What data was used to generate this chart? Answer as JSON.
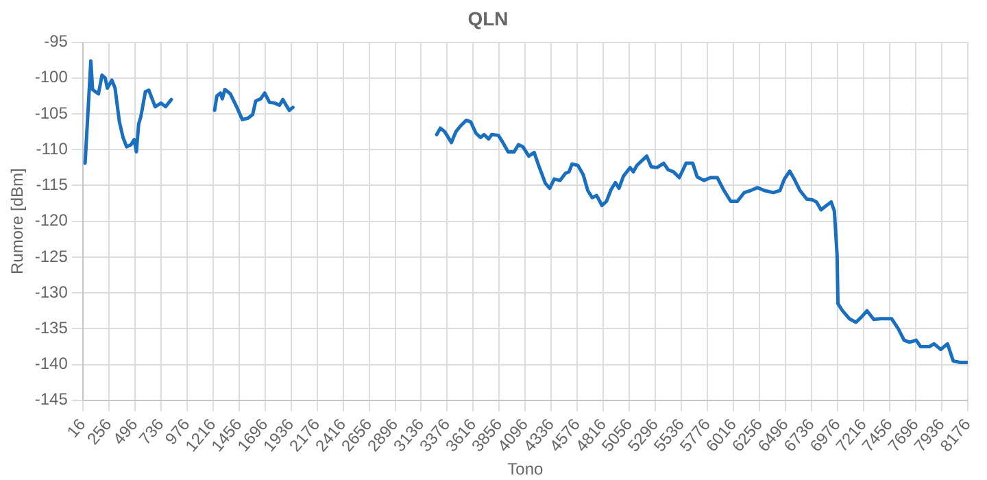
{
  "chart_data": {
    "type": "line",
    "title": "QLN",
    "xlabel": "Tono",
    "ylabel": "Rumore [dBm]",
    "xlim": [
      16,
      8176
    ],
    "xticks": [
      16,
      256,
      496,
      736,
      976,
      1216,
      1456,
      1696,
      1936,
      2176,
      2416,
      2656,
      2896,
      3136,
      3376,
      3616,
      3856,
      4096,
      4336,
      4576,
      4816,
      5056,
      5296,
      5536,
      5776,
      6016,
      6256,
      6496,
      6736,
      6976,
      7216,
      7456,
      7696,
      7936,
      8176
    ],
    "ylim": [
      -145,
      -95
    ],
    "yticks": [
      -95,
      -100,
      -105,
      -110,
      -115,
      -120,
      -125,
      -130,
      -135,
      -140,
      -145
    ],
    "grid": true,
    "legend": false,
    "marker": "none",
    "line_style": "solid",
    "series": [
      {
        "color": "#1a6fbf",
        "x": [
          37,
          90,
          106,
          131,
          160,
          193,
          222,
          242,
          284,
          313,
          353,
          387,
          420,
          461,
          490,
          510,
          531,
          551,
          593,
          625,
          655,
          683,
          737,
          779,
          832,
          1030,
          1231,
          1252,
          1285,
          1302,
          1326,
          1376,
          1437,
          1487,
          1540,
          1582,
          1610,
          1656,
          1693,
          1738,
          1787,
          1829,
          1861,
          1891,
          1920,
          1953,
          2600,
          3279,
          3313,
          3353,
          3415,
          3456,
          3498,
          3551,
          3592,
          3641,
          3683,
          3716,
          3758,
          3786,
          3848,
          3889,
          3938,
          3993,
          4033,
          4074,
          4128,
          4178,
          4219,
          4281,
          4321,
          4363,
          4416,
          4466,
          4499,
          4527,
          4581,
          4630,
          4672,
          4713,
          4754,
          4803,
          4845,
          4886,
          4927,
          4960,
          5001,
          5063,
          5092,
          5125,
          5174,
          5216,
          5257,
          5310,
          5372,
          5413,
          5463,
          5516,
          5578,
          5640,
          5681,
          5743,
          5804,
          5866,
          5928,
          5990,
          6052,
          6114,
          6175,
          6237,
          6299,
          6382,
          6444,
          6485,
          6534,
          6576,
          6629,
          6691,
          6740,
          6781,
          6823,
          6864,
          6917,
          6946,
          6971,
          6979,
          7021,
          7083,
          7145,
          7194,
          7247,
          7309,
          7371,
          7473,
          7535,
          7589,
          7639,
          7700,
          7741,
          7824,
          7865,
          7927,
          7989,
          8042,
          8104,
          8174
        ],
        "values": [
          -111.9,
          -97.6,
          -101.6,
          -101.9,
          -102.2,
          -99.6,
          -100,
          -101.4,
          -100.3,
          -101.4,
          -106.1,
          -108.3,
          -109.6,
          -109.3,
          -108.6,
          -110.3,
          -106.4,
          -105.4,
          -101.9,
          -101.7,
          -102.9,
          -104,
          -103.5,
          -104,
          -103,
          null,
          -104.5,
          -102.5,
          -102.1,
          -102.9,
          -101.6,
          -102.2,
          -104.1,
          -105.8,
          -105.6,
          -105.1,
          -103.2,
          -102.9,
          -102.1,
          -103.4,
          -103.5,
          -103.8,
          -103,
          -103.8,
          -104.5,
          -104.1,
          null,
          -107.9,
          -107,
          -107.5,
          -109,
          -107.5,
          -106.7,
          -105.9,
          -106.1,
          -107.7,
          -108.3,
          -107.9,
          -108.5,
          -107.9,
          -108,
          -109,
          -110.3,
          -110.3,
          -109.3,
          -109.6,
          -110.9,
          -110.4,
          -112.2,
          -114.7,
          -115.4,
          -114.1,
          -114.3,
          -113.3,
          -113.1,
          -112,
          -112.2,
          -113.5,
          -115.7,
          -116.7,
          -116.4,
          -117.8,
          -117.2,
          -115.6,
          -114.6,
          -115.4,
          -113.7,
          -112.5,
          -113.1,
          -112.2,
          -111.5,
          -110.9,
          -112.4,
          -112.5,
          -111.9,
          -112.8,
          -113.1,
          -113.9,
          -111.9,
          -111.9,
          -113.8,
          -114.3,
          -113.9,
          -113.9,
          -115.7,
          -117.2,
          -117.2,
          -116,
          -115.7,
          -115.3,
          -115.7,
          -116,
          -115.7,
          -114.1,
          -113,
          -114.1,
          -115.7,
          -116.9,
          -117,
          -117.3,
          -118.4,
          -117.9,
          -117.3,
          -118.6,
          -124.7,
          -131.5,
          -132.5,
          -133.6,
          -134.1,
          -133.4,
          -132.5,
          -133.7,
          -133.6,
          -133.6,
          -135,
          -136.6,
          -136.9,
          -136.6,
          -137.5,
          -137.5,
          -137.1,
          -137.9,
          -137.1,
          -139.5,
          -139.7,
          -139.7
        ]
      }
    ]
  }
}
